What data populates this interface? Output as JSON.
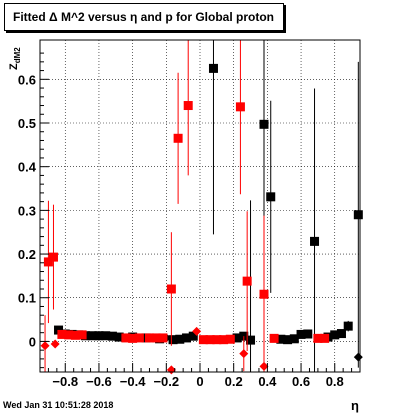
{
  "title": "Fitted Δ M^2 versus η and p for Global proton",
  "footer": "Wed Jan 31 10:51:28 2018",
  "colors": {
    "series1": "#000000",
    "series2": "#ff0000",
    "frame": "#000000"
  },
  "chart_data": {
    "type": "scatter",
    "title": "Fitted Δ M^2 versus η and p for Global proton",
    "xlabel": "η",
    "ylabel": "Z_dM2",
    "xlim": [
      -0.95,
      0.95
    ],
    "ylim": [
      -0.07,
      0.69
    ],
    "xticks": [
      -0.8,
      -0.6,
      -0.4,
      -0.2,
      0,
      0.2,
      0.4,
      0.6,
      0.8
    ],
    "xtick_labels": [
      "−0.8",
      "−0.6",
      "−0.4",
      "−0.2",
      "0",
      "0.2",
      "0.4",
      "0.6",
      "0.8"
    ],
    "yticks": [
      0,
      0.1,
      0.2,
      0.3,
      0.4,
      0.5,
      0.6
    ],
    "ytick_labels": [
      "0",
      "0.1",
      "0.2",
      "0.3",
      "0.4",
      "0.5",
      "0.6"
    ],
    "series": [
      {
        "color": "#000000",
        "points": [
          {
            "x": -0.84,
            "y": 0.026,
            "err": 0.005
          },
          {
            "x": -0.8,
            "y": 0.017,
            "err": 0.004
          },
          {
            "x": -0.76,
            "y": 0.016,
            "err": 0.004
          },
          {
            "x": -0.72,
            "y": 0.015,
            "err": 0.004
          },
          {
            "x": -0.68,
            "y": 0.013,
            "err": 0.004
          },
          {
            "x": -0.64,
            "y": 0.013,
            "err": 0.004
          },
          {
            "x": -0.6,
            "y": 0.013,
            "err": 0.004
          },
          {
            "x": -0.56,
            "y": 0.013,
            "err": 0.004
          },
          {
            "x": -0.52,
            "y": 0.012,
            "err": 0.004
          },
          {
            "x": -0.48,
            "y": 0.01,
            "err": 0.004
          },
          {
            "x": -0.4,
            "y": 0.01,
            "err": 0.004
          },
          {
            "x": -0.32,
            "y": 0.008,
            "err": 0.004
          },
          {
            "x": -0.24,
            "y": 0.006,
            "err": 0.004
          },
          {
            "x": -0.16,
            "y": 0.004,
            "err": 0.004
          },
          {
            "x": -0.12,
            "y": 0.005,
            "err": 0.004
          },
          {
            "x": -0.08,
            "y": 0.008,
            "err": 0.004
          },
          {
            "x": -0.04,
            "y": 0.012,
            "err": 0.004
          },
          {
            "x": 0.08,
            "y": 0.625,
            "err": 0.38
          },
          {
            "x": 0.22,
            "y": 0.008,
            "err": 0.004
          },
          {
            "x": 0.26,
            "y": 0.012,
            "err": 0.004
          },
          {
            "x": 0.3,
            "y": 0.003,
            "err": 0.32
          },
          {
            "x": 0.38,
            "y": 0.497,
            "err": 0.28
          },
          {
            "x": 0.42,
            "y": 0.331,
            "err": 0.22
          },
          {
            "x": 0.48,
            "y": 0.005,
            "err": 0.004
          },
          {
            "x": 0.52,
            "y": 0.004,
            "err": 0.004
          },
          {
            "x": 0.56,
            "y": 0.006,
            "err": 0.004
          },
          {
            "x": 0.6,
            "y": 0.016,
            "err": 0.004
          },
          {
            "x": 0.64,
            "y": 0.017,
            "err": 0.004
          },
          {
            "x": 0.68,
            "y": 0.229,
            "err": 0.35
          },
          {
            "x": 0.76,
            "y": 0.01,
            "err": 0.004
          },
          {
            "x": 0.8,
            "y": 0.015,
            "err": 0.004
          },
          {
            "x": 0.84,
            "y": 0.018,
            "err": 0.005
          },
          {
            "x": 0.88,
            "y": 0.035,
            "err": 0.012
          },
          {
            "x": 0.94,
            "y": 0.29,
            "err": 0.35
          },
          {
            "x": 0.94,
            "y": -0.036,
            "err": 0.004,
            "marker": "diamond"
          },
          {
            "x": -0.2,
            "y": 0.008,
            "err": 0.004,
            "marker": "diamond"
          }
        ]
      },
      {
        "color": "#ff0000",
        "points": [
          {
            "x": -0.92,
            "y": -0.01,
            "err": 0.07,
            "marker": "diamond"
          },
          {
            "x": -0.9,
            "y": 0.182,
            "err": 0.14
          },
          {
            "x": -0.87,
            "y": 0.193,
            "err": 0.12
          },
          {
            "x": -0.86,
            "y": -0.006,
            "err": 0.004,
            "marker": "diamond"
          },
          {
            "x": -0.82,
            "y": 0.016,
            "err": 0.004
          },
          {
            "x": -0.78,
            "y": 0.015,
            "err": 0.004
          },
          {
            "x": -0.74,
            "y": 0.014,
            "err": 0.004
          },
          {
            "x": -0.7,
            "y": 0.015,
            "err": 0.004
          },
          {
            "x": -0.44,
            "y": 0.008,
            "err": 0.004
          },
          {
            "x": -0.4,
            "y": 0.007,
            "err": 0.004
          },
          {
            "x": -0.36,
            "y": 0.008,
            "err": 0.004
          },
          {
            "x": -0.3,
            "y": 0.008,
            "err": 0.004
          },
          {
            "x": -0.26,
            "y": 0.008,
            "err": 0.004
          },
          {
            "x": -0.22,
            "y": 0.008,
            "err": 0.004
          },
          {
            "x": -0.17,
            "y": 0.12,
            "err": 0.13
          },
          {
            "x": -0.17,
            "y": -0.065,
            "err": 0.004,
            "marker": "diamond"
          },
          {
            "x": -0.13,
            "y": 0.465,
            "err": 0.15
          },
          {
            "x": -0.07,
            "y": 0.54,
            "err": 0.16
          },
          {
            "x": -0.02,
            "y": 0.023,
            "err": 0.004,
            "marker": "diamond"
          },
          {
            "x": 0.02,
            "y": 0.004,
            "err": 0.004
          },
          {
            "x": 0.06,
            "y": 0.004,
            "err": 0.004
          },
          {
            "x": 0.1,
            "y": 0.004,
            "err": 0.004
          },
          {
            "x": 0.14,
            "y": 0.004,
            "err": 0.004
          },
          {
            "x": 0.18,
            "y": 0.005,
            "err": 0.004
          },
          {
            "x": 0.24,
            "y": 0.537,
            "err": 0.2
          },
          {
            "x": 0.26,
            "y": -0.028,
            "err": 0.04,
            "marker": "diamond"
          },
          {
            "x": 0.28,
            "y": 0.138,
            "err": 0.16
          },
          {
            "x": 0.38,
            "y": 0.108,
            "err": 0.18
          },
          {
            "x": 0.38,
            "y": -0.057,
            "err": 0.004,
            "marker": "diamond"
          },
          {
            "x": 0.44,
            "y": 0.007,
            "err": 0.004
          },
          {
            "x": 0.7,
            "y": 0.007,
            "err": 0.004
          },
          {
            "x": 0.74,
            "y": 0.007,
            "err": 0.004
          }
        ]
      }
    ]
  }
}
